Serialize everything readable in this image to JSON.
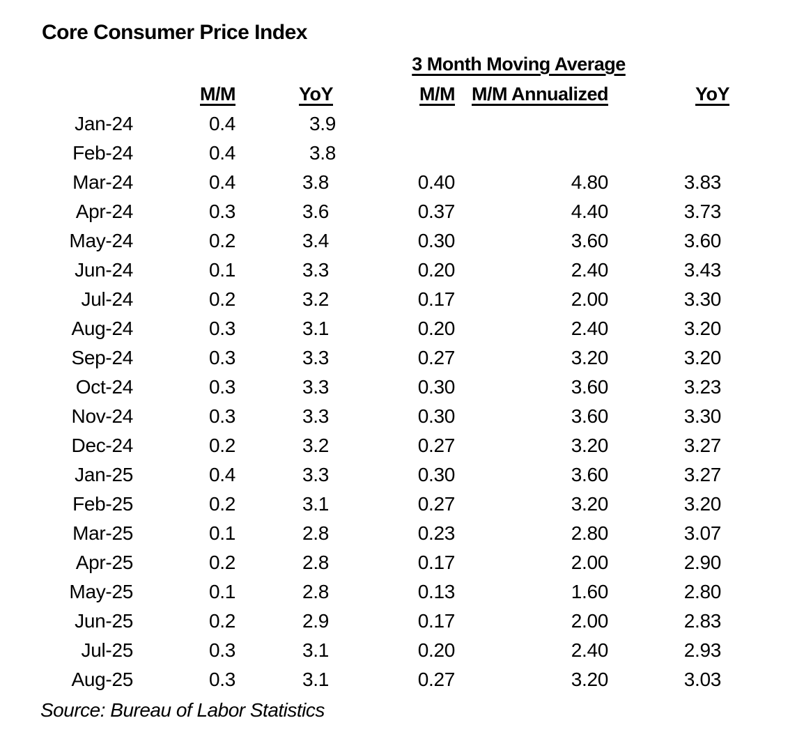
{
  "colors": {
    "background": "#ffffff",
    "text": "#000000"
  },
  "chart_data": {
    "type": "table",
    "title": "Core Consumer Price Index",
    "group_header": "3 Month Moving Average",
    "group_start_column_index": 3,
    "columns": [
      "",
      "M/M",
      "YoY",
      "M/M",
      "M/M Annualized",
      "YoY"
    ],
    "rows": [
      [
        "Jan-24",
        "0.4",
        "3.9",
        "",
        "",
        ""
      ],
      [
        "Feb-24",
        "0.4",
        "3.8",
        "",
        "",
        ""
      ],
      [
        "Mar-24",
        "0.4",
        "3.8",
        "0.40",
        "4.80",
        "3.83"
      ],
      [
        "Apr-24",
        "0.3",
        "3.6",
        "0.37",
        "4.40",
        "3.73"
      ],
      [
        "May-24",
        "0.2",
        "3.4",
        "0.30",
        "3.60",
        "3.60"
      ],
      [
        "Jun-24",
        "0.1",
        "3.3",
        "0.20",
        "2.40",
        "3.43"
      ],
      [
        "Jul-24",
        "0.2",
        "3.2",
        "0.17",
        "2.00",
        "3.30"
      ],
      [
        "Aug-24",
        "0.3",
        "3.1",
        "0.20",
        "2.40",
        "3.20"
      ],
      [
        "Sep-24",
        "0.3",
        "3.3",
        "0.27",
        "3.20",
        "3.20"
      ],
      [
        "Oct-24",
        "0.3",
        "3.3",
        "0.30",
        "3.60",
        "3.23"
      ],
      [
        "Nov-24",
        "0.3",
        "3.3",
        "0.30",
        "3.60",
        "3.30"
      ],
      [
        "Dec-24",
        "0.2",
        "3.2",
        "0.27",
        "3.20",
        "3.27"
      ],
      [
        "Jan-25",
        "0.4",
        "3.3",
        "0.30",
        "3.60",
        "3.27"
      ],
      [
        "Feb-25",
        "0.2",
        "3.1",
        "0.27",
        "3.20",
        "3.20"
      ],
      [
        "Mar-25",
        "0.1",
        "2.8",
        "0.23",
        "2.80",
        "3.07"
      ],
      [
        "Apr-25",
        "0.2",
        "2.8",
        "0.17",
        "2.00",
        "2.90"
      ],
      [
        "May-25",
        "0.1",
        "2.8",
        "0.13",
        "1.60",
        "2.80"
      ],
      [
        "Jun-25",
        "0.2",
        "2.9",
        "0.17",
        "2.00",
        "2.83"
      ],
      [
        "Jul-25",
        "0.3",
        "3.1",
        "0.20",
        "2.40",
        "2.93"
      ],
      [
        "Aug-25",
        "0.3",
        "3.1",
        "0.27",
        "3.20",
        "3.03"
      ]
    ],
    "source": "Source: Bureau of Labor Statistics"
  }
}
